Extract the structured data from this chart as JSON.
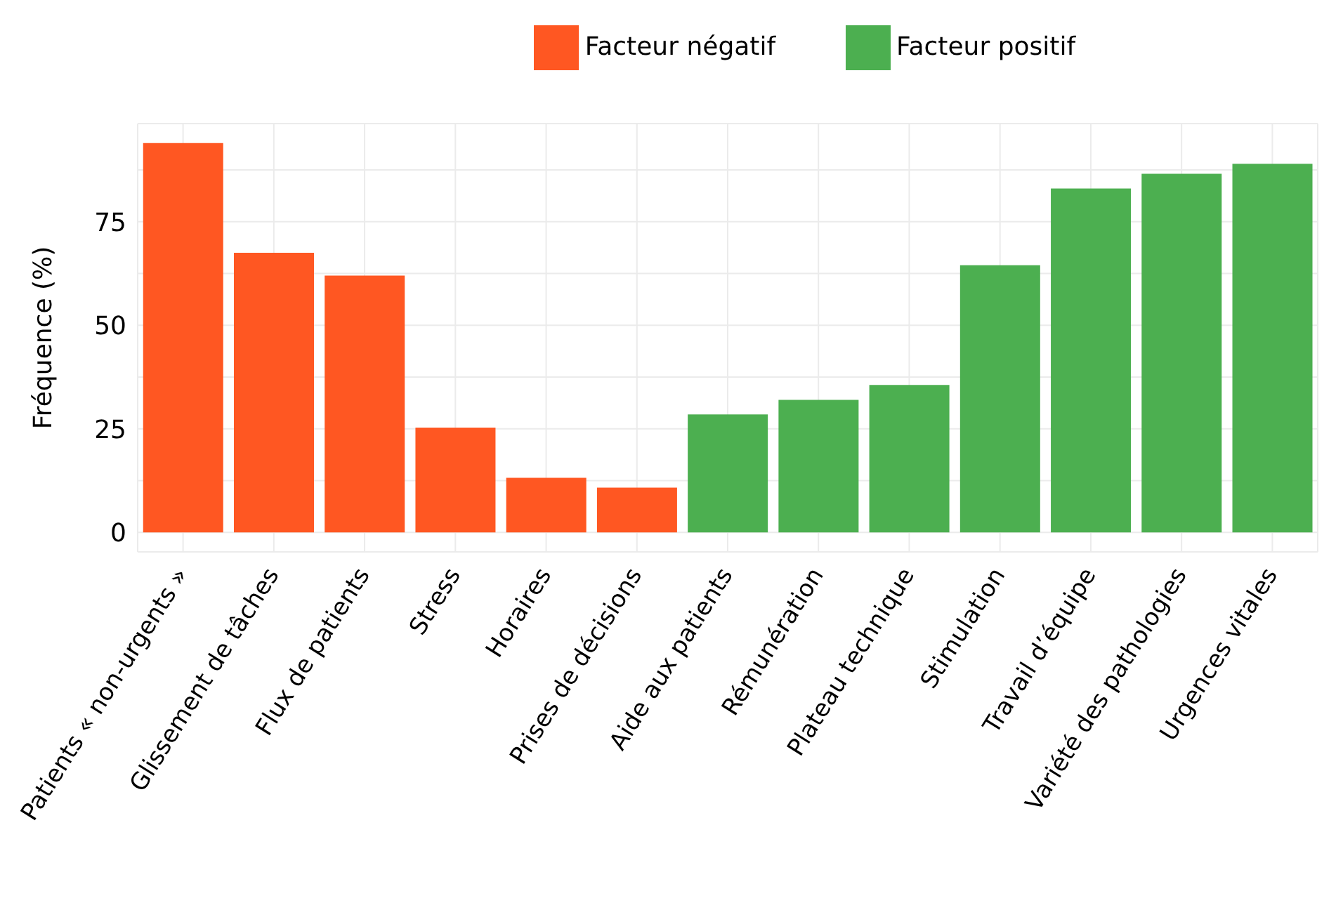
{
  "chart_data": {
    "type": "bar",
    "ylabel": "Fréquence (%)",
    "categories": [
      "Patients « non-urgents »",
      "Glissement de tâches",
      "Flux de patients",
      "Stress",
      "Horaires",
      "Prises de décisions",
      "Aide aux patients",
      "Rémunération",
      "Plateau technique",
      "Stimulation",
      "Travail d’équipe",
      "Variété des pathologies",
      "Urgences vitales"
    ],
    "series": [
      {
        "name": "Facteur négatif",
        "color": "#ff5722",
        "values": [
          94,
          67.5,
          62,
          25.3,
          13.2,
          10.8,
          null,
          null,
          null,
          null,
          null,
          null,
          null
        ]
      },
      {
        "name": "Facteur positif",
        "color": "#4caf50",
        "values": [
          null,
          null,
          null,
          null,
          null,
          null,
          28.5,
          32,
          35.6,
          64.5,
          83,
          86.6,
          89
        ]
      }
    ],
    "stacked": true,
    "ylim": [
      -4.7,
      98.7
    ],
    "yticks": [
      0,
      {
        "value": 12.5,
        "label": null
      },
      25,
      {
        "value": 37.5,
        "label": null
      },
      50,
      {
        "value": 62.5,
        "label": null
      },
      75,
      {
        "value": 87.5,
        "label": null
      }
    ],
    "grid": true,
    "legend": "top"
  }
}
